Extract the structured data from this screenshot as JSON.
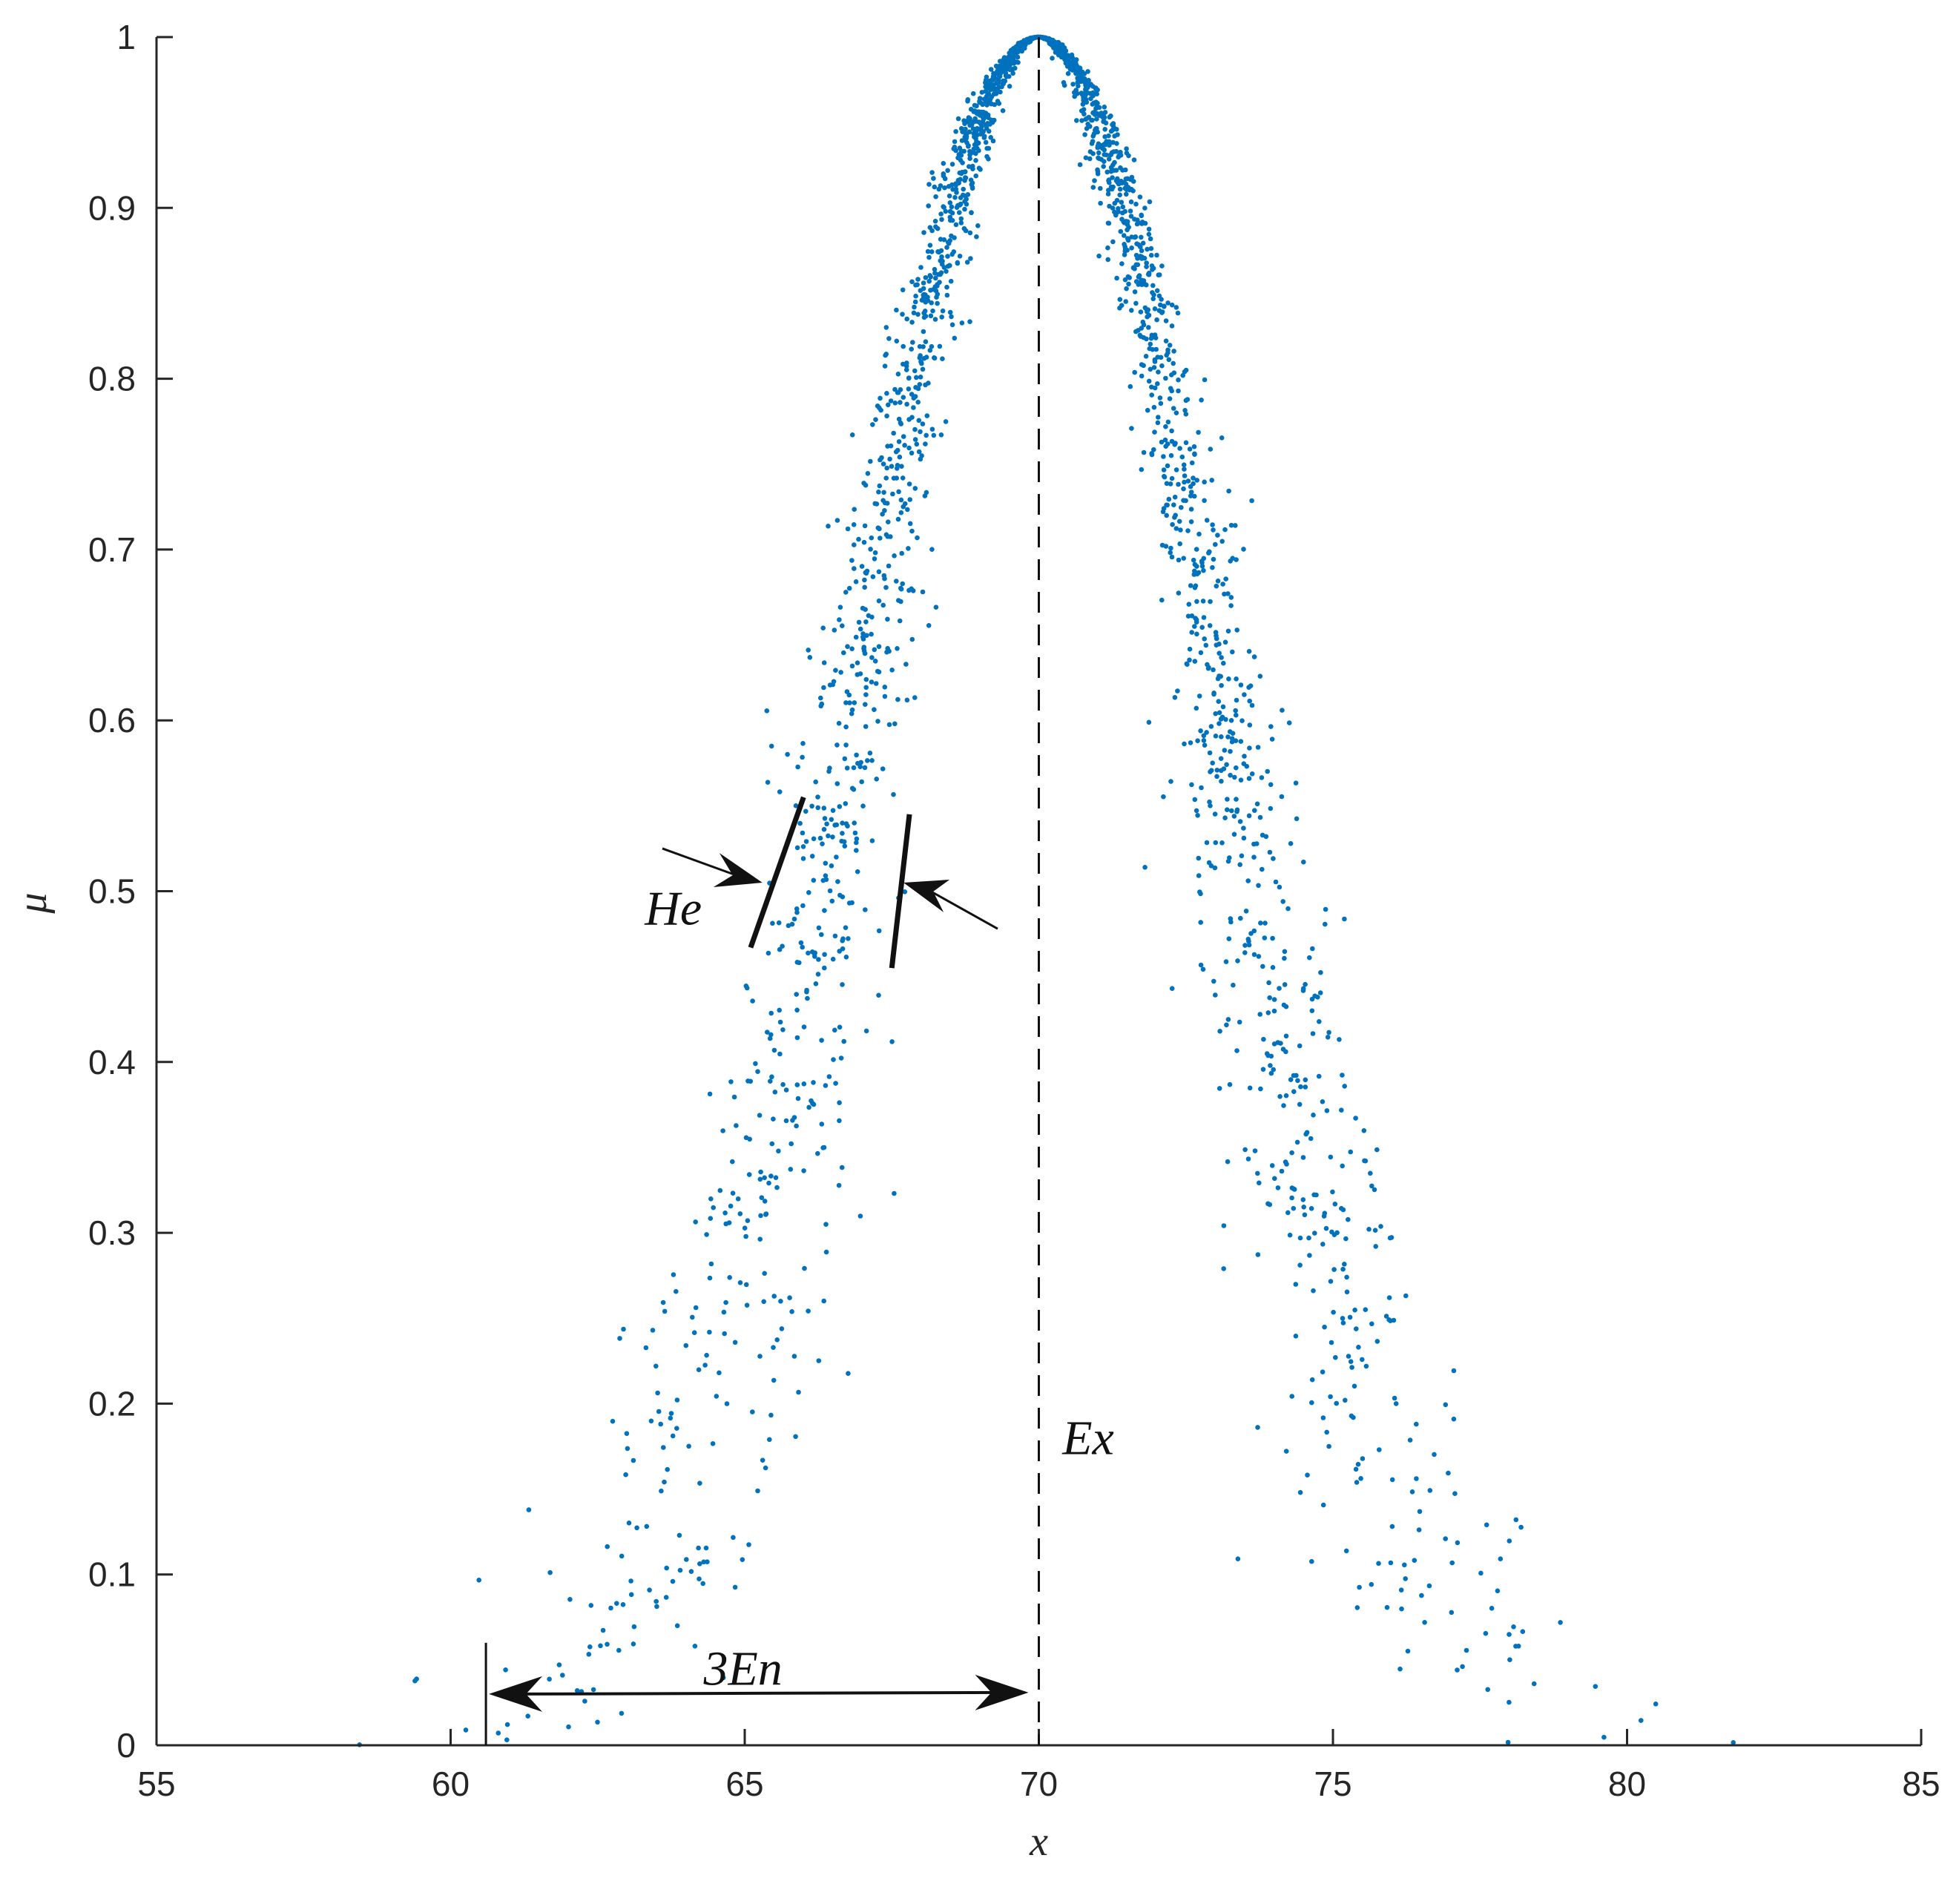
{
  "chart_data": {
    "type": "scatter",
    "title": "",
    "xlabel": "x",
    "ylabel": "μ",
    "xlim": [
      55,
      85
    ],
    "ylim": [
      0,
      1
    ],
    "xticks": [
      "55",
      "60",
      "65",
      "70",
      "75",
      "80",
      "85"
    ],
    "yticks": [
      "0",
      "0.1",
      "0.2",
      "0.3",
      "0.4",
      "0.5",
      "0.6",
      "0.7",
      "0.8",
      "0.9",
      "1"
    ],
    "grid": false,
    "point_color": "#0072BD",
    "cloud_model": {
      "Ex": 70,
      "En": 3.13,
      "He": 0.45,
      "points": 2500
    },
    "annotations": [
      {
        "label": "He",
        "x": 63.3,
        "y": 0.49
      },
      {
        "label": "Ex",
        "x": 70.4,
        "y": 0.18
      },
      {
        "label": "3En",
        "x": 64.3,
        "y": 0.045
      }
    ],
    "reference_lines": {
      "center_x": 70,
      "span": [
        60.6,
        70
      ]
    }
  }
}
